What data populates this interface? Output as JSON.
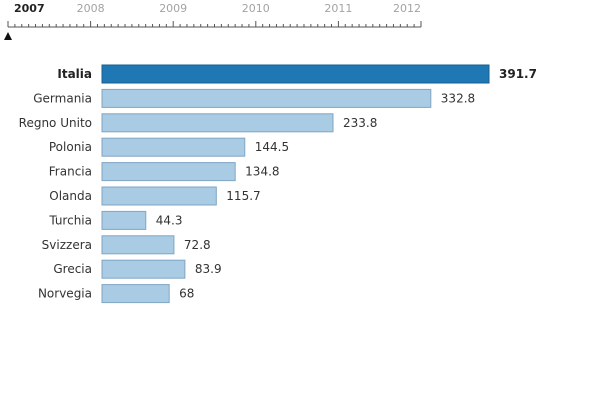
{
  "timeline": {
    "years": [
      "2007",
      "2008",
      "2009",
      "2010",
      "2011",
      "2012"
    ],
    "selected": "2007"
  },
  "colors": {
    "highlight_fill": "#1f77b4",
    "highlight_stroke": "#1a5f90",
    "bar_fill": "#a9cbe4",
    "bar_stroke": "#7fa6c4",
    "axis": "#555555",
    "marker": "#111111"
  },
  "chart_data": {
    "type": "bar",
    "orientation": "horizontal",
    "categories": [
      "Italia",
      "Germania",
      "Regno Unito",
      "Polonia",
      "Francia",
      "Olanda",
      "Turchia",
      "Svizzera",
      "Grecia",
      "Norvegia"
    ],
    "values": [
      391.7,
      332.8,
      233.8,
      144.5,
      134.8,
      115.7,
      44.3,
      72.8,
      83.9,
      68
    ],
    "value_labels": [
      "391.7",
      "332.8",
      "233.8",
      "144.5",
      "134.8",
      "115.7",
      "44.3",
      "72.8",
      "83.9",
      "68"
    ],
    "highlight": "Italia",
    "xlim": [
      0,
      391.7
    ],
    "title": "",
    "xlabel": "",
    "ylabel": ""
  }
}
